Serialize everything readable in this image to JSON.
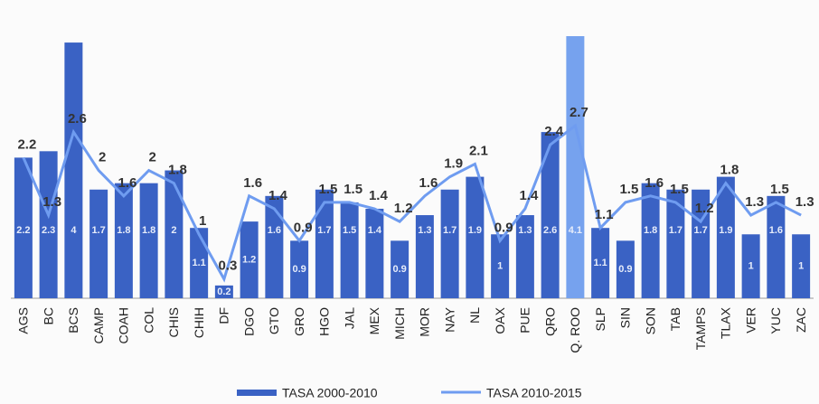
{
  "chart_data": {
    "type": "bar_line",
    "categories": [
      "AGS",
      "BC",
      "BCS",
      "CAMP",
      "COAH",
      "COL",
      "CHIS",
      "CHIH",
      "DF",
      "DGO",
      "GTO",
      "GRO",
      "HGO",
      "JAL",
      "MEX",
      "MICH",
      "MOR",
      "NAY",
      "NL",
      "OAX",
      "PUE",
      "QRO",
      "Q. ROO",
      "SLP",
      "SIN",
      "SON",
      "TAB",
      "TAMPS",
      "TLAX",
      "VER",
      "YUC",
      "ZAC"
    ],
    "series": [
      {
        "name": "TASA 2000-2010",
        "type": "bar",
        "color": "#3a62c4",
        "colors": [
          "#3a62c4",
          "#3a62c4",
          "#3a62c4",
          "#3a62c4",
          "#3a62c4",
          "#3a62c4",
          "#3a62c4",
          "#3a62c4",
          "#3a62c4",
          "#3a62c4",
          "#3a62c4",
          "#3a62c4",
          "#3a62c4",
          "#3a62c4",
          "#3a62c4",
          "#3a62c4",
          "#3a62c4",
          "#3a62c4",
          "#3a62c4",
          "#3a62c4",
          "#3a62c4",
          "#3a62c4",
          "#76a2ee",
          "#3a62c4",
          "#3a62c4",
          "#3a62c4",
          "#3a62c4",
          "#3a62c4",
          "#3a62c4",
          "#3a62c4",
          "#3a62c4",
          "#3a62c4"
        ],
        "values": [
          2.2,
          2.3,
          4,
          1.7,
          1.8,
          1.8,
          2,
          1.1,
          0.2,
          1.2,
          1.6,
          0.9,
          1.7,
          1.5,
          1.4,
          0.9,
          1.3,
          1.7,
          1.9,
          1,
          1.3,
          2.6,
          4.1,
          1.1,
          0.9,
          1.8,
          1.7,
          1.7,
          1.9,
          1,
          1.6,
          1
        ]
      },
      {
        "name": "TASA 2010-2015",
        "type": "line",
        "color": "#6f9cf0",
        "values": [
          2.2,
          1.3,
          2.6,
          2,
          1.6,
          2,
          1.8,
          1,
          0.3,
          1.6,
          1.4,
          0.9,
          1.5,
          1.5,
          1.4,
          1.2,
          1.6,
          1.9,
          2.1,
          0.9,
          1.4,
          2.4,
          2.7,
          1.1,
          1.5,
          1.6,
          1.5,
          1.2,
          1.8,
          1.3,
          1.5,
          1.3
        ]
      }
    ],
    "ylim": [
      0,
      4.1
    ]
  }
}
